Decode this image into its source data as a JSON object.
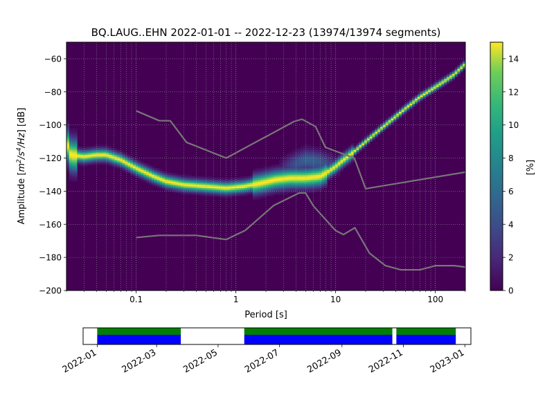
{
  "figure": {
    "title": "BQ.LAUG..EHN   2022-01-01 -- 2022-12-23  (13974/13974 segments)"
  },
  "chart_data": [
    {
      "type": "heatmap",
      "title": "BQ.LAUG..EHN   2022-01-01 -- 2022-12-23  (13974/13974 segments)",
      "xlabel": "Period [s]",
      "ylabel_parts": [
        "Amplitude [",
        "m",
        "2",
        "/s",
        "4",
        "/Hz",
        "] [dB]"
      ],
      "xscale": "log",
      "xlim": [
        0.02,
        200
      ],
      "ylim": [
        -200,
        -50
      ],
      "xticks": [
        {
          "value": 0.1,
          "label": "0.1"
        },
        {
          "value": 1,
          "label": "1"
        },
        {
          "value": 10,
          "label": "10"
        },
        {
          "value": 100,
          "label": "100"
        }
      ],
      "yticks": [
        {
          "value": -60,
          "label": "−60"
        },
        {
          "value": -80,
          "label": "−80"
        },
        {
          "value": -100,
          "label": "−100"
        },
        {
          "value": -120,
          "label": "−120"
        },
        {
          "value": -140,
          "label": "−140"
        },
        {
          "value": -160,
          "label": "−160"
        },
        {
          "value": -180,
          "label": "−180"
        },
        {
          "value": -200,
          "label": "−200"
        }
      ],
      "grid": true,
      "colormap": "viridis",
      "background_color": "#440154",
      "colorbar": {
        "label": "[%]",
        "range": [
          0,
          15
        ],
        "ticks": [
          {
            "value": 0,
            "label": "0"
          },
          {
            "value": 2,
            "label": "2"
          },
          {
            "value": 4,
            "label": "4"
          },
          {
            "value": 6,
            "label": "6"
          },
          {
            "value": 8,
            "label": "8"
          },
          {
            "value": 10,
            "label": "10"
          },
          {
            "value": 12,
            "label": "12"
          },
          {
            "value": 14,
            "label": "14"
          }
        ]
      },
      "ppsd_mode": [
        [
          0.02,
          -110
        ],
        [
          0.022,
          -118
        ],
        [
          0.03,
          -119
        ],
        [
          0.04,
          -118
        ],
        [
          0.05,
          -118
        ],
        [
          0.07,
          -121
        ],
        [
          0.1,
          -126
        ],
        [
          0.15,
          -131
        ],
        [
          0.2,
          -134
        ],
        [
          0.3,
          -136
        ],
        [
          0.5,
          -137
        ],
        [
          0.8,
          -138
        ],
        [
          1.2,
          -137
        ],
        [
          1.8,
          -135
        ],
        [
          2.5,
          -133
        ],
        [
          3.5,
          -132
        ],
        [
          5,
          -132
        ],
        [
          7,
          -131
        ],
        [
          8,
          -129
        ],
        [
          10,
          -125
        ],
        [
          12,
          -121
        ],
        [
          14,
          -118
        ],
        [
          20,
          -110
        ],
        [
          30,
          -101
        ],
        [
          50,
          -90
        ],
        [
          70,
          -83
        ],
        [
          100,
          -77
        ],
        [
          150,
          -70
        ],
        [
          200,
          -63
        ]
      ],
      "ppsd_secondary": [
        [
          2.5,
          -128
        ],
        [
          4,
          -123
        ],
        [
          5,
          -121
        ],
        [
          7,
          -122
        ],
        [
          9,
          -124
        ],
        [
          12,
          -126
        ]
      ],
      "noise_models": [
        {
          "type": "line",
          "color": "#777777",
          "points": [
            [
              0.1,
              -91.5
            ],
            [
              0.17,
              -97.4
            ],
            [
              0.22,
              -97.5
            ],
            [
              0.32,
              -110.5
            ],
            [
              0.8,
              -120
            ],
            [
              3.8,
              -98
            ],
            [
              4.6,
              -96.5
            ],
            [
              6.3,
              -101
            ],
            [
              7.9,
              -113.5
            ],
            [
              15.4,
              -120
            ],
            [
              20,
              -138.5
            ],
            [
              354.8,
              -126
            ],
            [
              1000,
              -116
            ]
          ]
        },
        {
          "type": "line",
          "color": "#777777",
          "points": [
            [
              0.1,
              -168
            ],
            [
              0.17,
              -166.7
            ],
            [
              0.4,
              -166.7
            ],
            [
              0.8,
              -169.2
            ],
            [
              1.24,
              -163.7
            ],
            [
              2.4,
              -148.6
            ],
            [
              4.3,
              -141.1
            ],
            [
              5,
              -141.1
            ],
            [
              6,
              -149
            ],
            [
              10,
              -163.8
            ],
            [
              12,
              -166.2
            ],
            [
              15.6,
              -162.1
            ],
            [
              21.9,
              -177.5
            ],
            [
              31.6,
              -185
            ],
            [
              45,
              -187.5
            ],
            [
              70,
              -187.5
            ],
            [
              101,
              -185
            ],
            [
              154,
              -185
            ],
            [
              328,
              -187.5
            ]
          ]
        }
      ]
    },
    {
      "type": "bar",
      "orientation": "horizontal-timeline",
      "xlim": [
        "2021-12-18",
        "2023-01-07"
      ],
      "xticks": [
        {
          "value": "2022-01-01",
          "label": "2022-01"
        },
        {
          "value": "2022-03-01",
          "label": "2022-03"
        },
        {
          "value": "2022-05-01",
          "label": "2022-05"
        },
        {
          "value": "2022-07-01",
          "label": "2022-07"
        },
        {
          "value": "2022-09-01",
          "label": "2022-09"
        },
        {
          "value": "2022-11-01",
          "label": "2022-11"
        },
        {
          "value": "2023-01-01",
          "label": "2023-01"
        }
      ],
      "series": [
        {
          "color": "#008000",
          "band": "upper",
          "intervals": [
            [
              "2022-01-01",
              "2022-03-25"
            ],
            [
              "2022-05-27",
              "2022-10-21"
            ],
            [
              "2022-10-25",
              "2022-12-23"
            ]
          ]
        },
        {
          "color": "#0000ff",
          "band": "lower",
          "intervals": [
            [
              "2022-01-01",
              "2022-03-25"
            ],
            [
              "2022-05-27",
              "2022-10-21"
            ],
            [
              "2022-10-25",
              "2022-12-23"
            ]
          ]
        }
      ]
    }
  ]
}
